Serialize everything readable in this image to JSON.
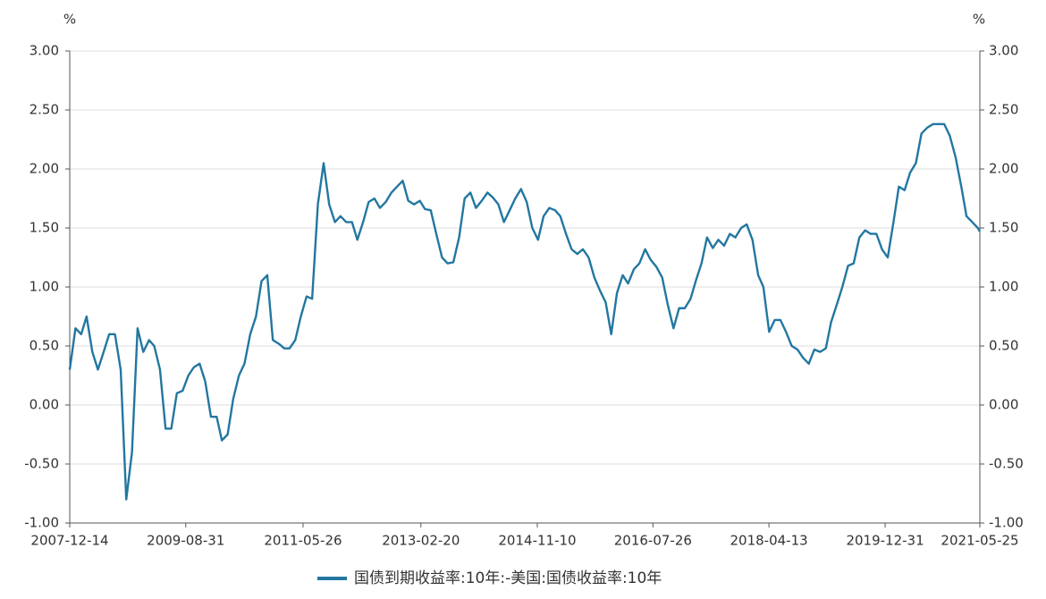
{
  "chart_data": {
    "type": "line",
    "y_label": "%",
    "y2_label": "%",
    "x": [
      "2007-12-14",
      "2008-01-14",
      "2008-02-14",
      "2008-03-14",
      "2008-04-14",
      "2008-05-14",
      "2008-06-14",
      "2008-07-14",
      "2008-08-14",
      "2008-09-14",
      "2008-10-14",
      "2008-11-14",
      "2008-12-14",
      "2009-01-14",
      "2009-02-14",
      "2009-03-14",
      "2009-04-14",
      "2009-05-14",
      "2009-06-14",
      "2009-07-14",
      "2009-08-14",
      "2009-09-14",
      "2009-10-14",
      "2009-11-14",
      "2009-12-14",
      "2010-01-14",
      "2010-02-14",
      "2010-03-14",
      "2010-04-14",
      "2010-05-14",
      "2010-06-14",
      "2010-07-14",
      "2010-08-14",
      "2010-09-14",
      "2010-10-14",
      "2010-11-14",
      "2010-12-14",
      "2011-01-14",
      "2011-02-14",
      "2011-03-14",
      "2011-04-14",
      "2011-05-14",
      "2011-06-14",
      "2011-07-14",
      "2011-08-14",
      "2011-09-14",
      "2011-10-14",
      "2011-11-14",
      "2011-12-14",
      "2012-01-14",
      "2012-02-14",
      "2012-03-14",
      "2012-04-14",
      "2012-05-14",
      "2012-06-14",
      "2012-07-14",
      "2012-08-14",
      "2012-09-14",
      "2012-10-14",
      "2012-11-14",
      "2012-12-14",
      "2013-01-14",
      "2013-02-14",
      "2013-03-14",
      "2013-04-14",
      "2013-05-14",
      "2013-06-14",
      "2013-07-14",
      "2013-08-14",
      "2013-09-14",
      "2013-10-14",
      "2013-11-14",
      "2013-12-14",
      "2014-01-14",
      "2014-02-14",
      "2014-03-14",
      "2014-04-14",
      "2014-05-14",
      "2014-06-14",
      "2014-07-14",
      "2014-08-14",
      "2014-09-14",
      "2014-10-14",
      "2014-11-14",
      "2014-12-14",
      "2015-01-14",
      "2015-02-14",
      "2015-03-14",
      "2015-04-14",
      "2015-05-14",
      "2015-06-14",
      "2015-07-14",
      "2015-08-14",
      "2015-09-14",
      "2015-10-14",
      "2015-11-14",
      "2015-12-14",
      "2016-01-14",
      "2016-02-14",
      "2016-03-14",
      "2016-04-14",
      "2016-05-14",
      "2016-06-14",
      "2016-07-14",
      "2016-08-14",
      "2016-09-14",
      "2016-10-14",
      "2016-11-14",
      "2016-12-14",
      "2017-01-14",
      "2017-02-14",
      "2017-03-14",
      "2017-04-14",
      "2017-05-14",
      "2017-06-14",
      "2017-07-14",
      "2017-08-14",
      "2017-09-14",
      "2017-10-14",
      "2017-11-14",
      "2017-12-14",
      "2018-01-14",
      "2018-02-14",
      "2018-03-14",
      "2018-04-14",
      "2018-05-14",
      "2018-06-14",
      "2018-07-14",
      "2018-08-14",
      "2018-09-14",
      "2018-10-14",
      "2018-11-14",
      "2018-12-14",
      "2019-01-14",
      "2019-02-14",
      "2019-03-14",
      "2019-04-14",
      "2019-05-14",
      "2019-06-14",
      "2019-07-14",
      "2019-08-14",
      "2019-09-14",
      "2019-10-14",
      "2019-11-14",
      "2019-12-14",
      "2020-01-14",
      "2020-02-14",
      "2020-03-14",
      "2020-04-14",
      "2020-05-14",
      "2020-06-14",
      "2020-07-14",
      "2020-08-14",
      "2020-09-14",
      "2020-10-14",
      "2020-11-14",
      "2020-12-14",
      "2021-01-14",
      "2021-02-14",
      "2021-03-14",
      "2021-04-14",
      "2021-05-14",
      "2021-05-25"
    ],
    "series": [
      {
        "name": "国债到期收益率:10年:-美国:国债收益率:10年",
        "color": "#2277a0",
        "axis": "y",
        "values": [
          0.3,
          0.65,
          0.6,
          0.75,
          0.45,
          0.3,
          0.45,
          0.6,
          0.6,
          0.3,
          -0.8,
          -0.4,
          0.65,
          0.45,
          0.55,
          0.5,
          0.3,
          -0.2,
          -0.2,
          0.1,
          0.12,
          0.25,
          0.32,
          0.35,
          0.2,
          -0.1,
          -0.1,
          -0.3,
          -0.25,
          0.05,
          0.25,
          0.35,
          0.6,
          0.75,
          1.05,
          1.1,
          0.55,
          0.52,
          0.48,
          0.48,
          0.55,
          0.75,
          0.92,
          0.9,
          1.7,
          2.05,
          1.7,
          1.55,
          1.6,
          1.55,
          1.55,
          1.4,
          1.55,
          1.72,
          1.75,
          1.67,
          1.72,
          1.8,
          1.85,
          1.9,
          1.73,
          1.7,
          1.73,
          1.66,
          1.65,
          1.45,
          1.25,
          1.2,
          1.21,
          1.42,
          1.75,
          1.8,
          1.67,
          1.73,
          1.8,
          1.76,
          1.7,
          1.55,
          1.65,
          1.75,
          1.83,
          1.72,
          1.5,
          1.4,
          1.6,
          1.67,
          1.65,
          1.6,
          1.45,
          1.32,
          1.28,
          1.32,
          1.25,
          1.08,
          0.97,
          0.87,
          0.6,
          0.95,
          1.1,
          1.03,
          1.15,
          1.2,
          1.32,
          1.23,
          1.17,
          1.08,
          0.85,
          0.65,
          0.82,
          0.82,
          0.9,
          1.05,
          1.2,
          1.42,
          1.33,
          1.4,
          1.35,
          1.45,
          1.42,
          1.5,
          1.53,
          1.4,
          1.1,
          1.0,
          0.62,
          0.72,
          0.72,
          0.62,
          0.5,
          0.47,
          0.4,
          0.35,
          0.47,
          0.45,
          0.48,
          0.7,
          0.85,
          1.0,
          1.18,
          1.2,
          1.42,
          1.48,
          1.45,
          1.45,
          1.32,
          1.25,
          1.55,
          1.85,
          1.82,
          1.97,
          2.05,
          2.3,
          2.35,
          2.38,
          2.38,
          2.38,
          2.28,
          2.1,
          1.85,
          1.6,
          1.55,
          1.5,
          1.47
        ]
      }
    ],
    "xlim": [
      "2007-12-14",
      "2021-05-25"
    ],
    "xticks": [
      "2007-12-14",
      "2009-08-31",
      "2011-05-26",
      "2013-02-20",
      "2014-11-10",
      "2016-07-26",
      "2018-04-13",
      "2019-12-31",
      "2021-05-25"
    ],
    "ylim": [
      -1,
      3
    ],
    "yticks": [
      {
        "value": -1,
        "label": "-1.00"
      },
      {
        "value": -0.5,
        "label": "-0.50"
      },
      {
        "value": 0,
        "label": "0.00"
      },
      {
        "value": 0.5,
        "label": "0.50"
      },
      {
        "value": 1,
        "label": "1.00"
      },
      {
        "value": 1.5,
        "label": "1.50"
      },
      {
        "value": 2,
        "label": "2.00"
      },
      {
        "value": 2.5,
        "label": "2.50"
      },
      {
        "value": 3,
        "label": "3.00"
      }
    ],
    "y2lim": [
      -1,
      3
    ],
    "y2ticks": [
      {
        "value": -1,
        "label": "-1.00"
      },
      {
        "value": -0.5,
        "label": "-0.50"
      },
      {
        "value": 0,
        "label": "0.00"
      },
      {
        "value": 0.5,
        "label": "0.50"
      },
      {
        "value": 1,
        "label": "1.00"
      },
      {
        "value": 1.5,
        "label": "1.50"
      },
      {
        "value": 2,
        "label": "2.00"
      },
      {
        "value": 2.5,
        "label": "2.50"
      },
      {
        "value": 3,
        "label": "3.00"
      }
    ],
    "grid": true,
    "legend": "bottom"
  }
}
